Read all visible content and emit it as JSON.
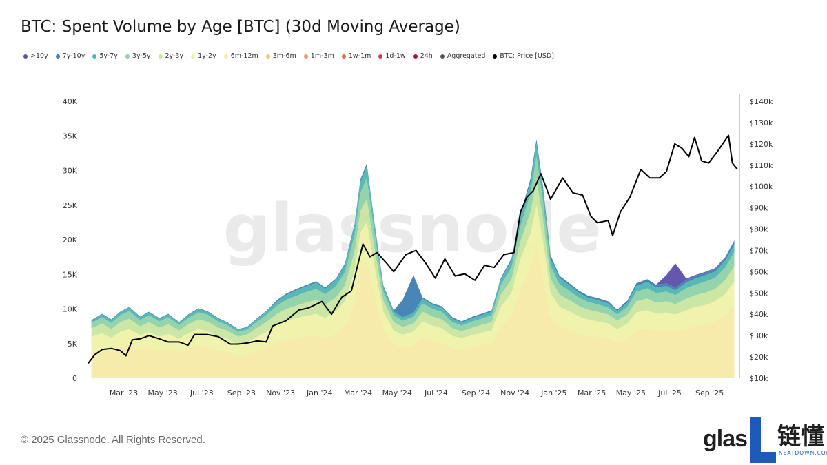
{
  "page": {
    "title": "BTC: Spent Volume by Age [BTC] (30d Moving Average)",
    "watermark": "glassnode",
    "copyright": "© 2025 Glassnode. All Rights Reserved.",
    "brand_left": "glas",
    "brand_right": "链懂",
    "brand_right_sub": "NEATDOWN.COM"
  },
  "legend": [
    {
      "label": ">10y",
      "color": "#5b4fa6",
      "active": true
    },
    {
      "label": "7y-10y",
      "color": "#3f7fb4",
      "active": true
    },
    {
      "label": "5y-7y",
      "color": "#4fb5b0",
      "active": true
    },
    {
      "label": "3y-5y",
      "color": "#8fd1a8",
      "active": true
    },
    {
      "label": "2y-3y",
      "color": "#c8e5a0",
      "active": true
    },
    {
      "label": "1y-2y",
      "color": "#eef2a6",
      "active": true
    },
    {
      "label": "6m-12m",
      "color": "#f7eaa8",
      "active": true
    },
    {
      "label": "3m-6m",
      "color": "#f8c67a",
      "active": false
    },
    {
      "label": "1m-3m",
      "color": "#f29a5e",
      "active": false
    },
    {
      "label": "1w-1m",
      "color": "#e06c4f",
      "active": false
    },
    {
      "label": "1d-1w",
      "color": "#cf3f4e",
      "active": false
    },
    {
      "label": "24h",
      "color": "#a1133c",
      "active": false
    },
    {
      "label": "Aggregated",
      "color": "#555555",
      "active": false
    },
    {
      "label": "BTC: Price [USD]",
      "color": "#000000",
      "active": true
    }
  ],
  "chart_data": {
    "type": "area",
    "title": "BTC: Spent Volume by Age [BTC] (30d Moving Average)",
    "x_tick_labels": [
      "Mar '23",
      "May '23",
      "Jul '23",
      "Sep '23",
      "Nov '23",
      "Jan '24",
      "Mar '24",
      "May '24",
      "Jul '24",
      "Sep '24",
      "Nov '24",
      "Jan '25",
      "Mar '25",
      "May '25",
      "Jul '25",
      "Sep '25"
    ],
    "y_left": {
      "ticks": [
        "0",
        "5K",
        "10K",
        "15K",
        "20K",
        "25K",
        "30K",
        "35K",
        "40K"
      ],
      "range": [
        0,
        40000
      ]
    },
    "y_right": {
      "ticks": [
        "$10k",
        "$20k",
        "$30k",
        "$40k",
        "$50k",
        "$60k",
        "$70k",
        "$80k",
        "$90k",
        "$100k",
        "$110k",
        "$120k",
        "$130k",
        "$140k"
      ],
      "range": [
        10000,
        140000
      ]
    },
    "x": [
      "2023-01-15",
      "2023-02-01",
      "2023-02-15",
      "2023-03-01",
      "2023-03-15",
      "2023-04-01",
      "2023-04-15",
      "2023-05-01",
      "2023-05-15",
      "2023-06-01",
      "2023-06-15",
      "2023-07-01",
      "2023-07-15",
      "2023-08-01",
      "2023-08-15",
      "2023-09-01",
      "2023-09-15",
      "2023-10-01",
      "2023-10-15",
      "2023-11-01",
      "2023-11-15",
      "2023-12-01",
      "2023-12-15",
      "2024-01-01",
      "2024-01-15",
      "2024-02-01",
      "2024-02-15",
      "2024-03-01",
      "2024-03-10",
      "2024-03-20",
      "2024-04-01",
      "2024-04-15",
      "2024-05-01",
      "2024-05-15",
      "2024-06-01",
      "2024-06-15",
      "2024-07-01",
      "2024-07-15",
      "2024-08-01",
      "2024-08-15",
      "2024-09-01",
      "2024-09-15",
      "2024-10-01",
      "2024-10-15",
      "2024-11-01",
      "2024-11-15",
      "2024-12-01",
      "2024-12-10",
      "2024-12-20",
      "2025-01-01",
      "2025-01-15",
      "2025-02-01",
      "2025-02-15",
      "2025-03-01",
      "2025-03-15",
      "2025-04-01",
      "2025-04-15",
      "2025-05-01",
      "2025-05-15",
      "2025-06-01",
      "2025-06-15",
      "2025-07-01",
      "2025-07-15",
      "2025-08-01",
      "2025-08-15",
      "2025-09-01",
      "2025-09-15",
      "2025-10-01",
      "2025-10-15"
    ],
    "series": [
      {
        "name": "6m-12m",
        "color": "#f7eaa8",
        "values": [
          4000,
          4200,
          3800,
          4500,
          4800,
          4200,
          4500,
          4000,
          4300,
          3800,
          4400,
          4800,
          4600,
          4000,
          3800,
          3200,
          3400,
          4000,
          4500,
          5200,
          5600,
          5800,
          6000,
          6200,
          5800,
          6500,
          7500,
          11000,
          16000,
          17000,
          12000,
          7000,
          5000,
          4500,
          4800,
          6000,
          5500,
          5200,
          4400,
          4200,
          4500,
          4800,
          5000,
          7500,
          9000,
          13000,
          16000,
          19000,
          15000,
          9000,
          7500,
          7000,
          6500,
          6200,
          6000,
          5800,
          5200,
          5800,
          7000,
          7200,
          6800,
          7000,
          6800,
          7200,
          7600,
          7800,
          8200,
          9000,
          10500
        ]
      },
      {
        "name": "1y-2y",
        "color": "#eef2a6",
        "values": [
          2000,
          2300,
          2000,
          2200,
          2300,
          2000,
          2200,
          2000,
          2100,
          1900,
          2100,
          2300,
          2200,
          2000,
          1900,
          1700,
          1800,
          2000,
          2200,
          2500,
          2700,
          2900,
          3000,
          3100,
          2900,
          3200,
          3600,
          4500,
          5000,
          5500,
          4200,
          2600,
          1900,
          1800,
          1900,
          2200,
          2100,
          2000,
          1700,
          1600,
          1700,
          1800,
          1900,
          2800,
          3300,
          4200,
          5000,
          6000,
          5000,
          3300,
          2800,
          2600,
          2400,
          2300,
          2200,
          2100,
          1900,
          2100,
          2500,
          2600,
          2500,
          2500,
          2400,
          2600,
          2700,
          2800,
          2900,
          3200,
          3500
        ]
      },
      {
        "name": "2y-3y",
        "color": "#c8e5a0",
        "values": [
          1200,
          1400,
          1300,
          1400,
          1500,
          1300,
          1400,
          1300,
          1400,
          1200,
          1300,
          1400,
          1400,
          1300,
          1200,
          1100,
          1100,
          1300,
          1400,
          1600,
          1700,
          1800,
          1900,
          2000,
          1900,
          2000,
          2300,
          2800,
          3100,
          3400,
          2600,
          1600,
          1200,
          1100,
          1200,
          1400,
          1300,
          1300,
          1100,
          1000,
          1100,
          1100,
          1200,
          1700,
          2000,
          2600,
          3100,
          3700,
          3100,
          2100,
          1800,
          1600,
          1500,
          1400,
          1400,
          1300,
          1200,
          1300,
          1600,
          1700,
          1600,
          1600,
          1500,
          1700,
          1700,
          1800,
          1800,
          2000,
          2200
        ]
      },
      {
        "name": "3y-5y",
        "color": "#8fd1a8",
        "values": [
          800,
          900,
          900,
          1000,
          1100,
          900,
          1000,
          900,
          1000,
          800,
          900,
          1000,
          1000,
          900,
          800,
          700,
          700,
          900,
          1000,
          1200,
          1300,
          1400,
          1500,
          1600,
          1500,
          1600,
          1900,
          2400,
          2700,
          3000,
          2200,
          1300,
          1000,
          900,
          1000,
          1200,
          1100,
          1100,
          900,
          800,
          900,
          900,
          1000,
          1400,
          1700,
          2200,
          2700,
          3300,
          2700,
          1800,
          1500,
          1300,
          1200,
          1100,
          1100,
          1000,
          900,
          1100,
          1400,
          1500,
          1400,
          1400,
          1300,
          1500,
          1500,
          1600,
          1600,
          1800,
          2000
        ]
      },
      {
        "name": "5y-7y",
        "color": "#4fb5b0",
        "values": [
          300,
          400,
          400,
          400,
          500,
          400,
          400,
          400,
          400,
          300,
          400,
          500,
          400,
          400,
          300,
          300,
          300,
          400,
          500,
          600,
          700,
          800,
          800,
          900,
          800,
          900,
          1000,
          1300,
          1500,
          1700,
          1200,
          700,
          500,
          500,
          500,
          700,
          600,
          600,
          500,
          400,
          500,
          500,
          500,
          800,
          1000,
          1300,
          1600,
          1900,
          1600,
          1000,
          900,
          800,
          700,
          600,
          600,
          600,
          500,
          600,
          800,
          900,
          800,
          800,
          700,
          800,
          900,
          900,
          900,
          1000,
          1100
        ]
      },
      {
        "name": "7y-10y",
        "color": "#3f7fb4",
        "values": [
          100,
          100,
          100,
          100,
          100,
          100,
          100,
          100,
          100,
          100,
          100,
          100,
          100,
          100,
          100,
          100,
          100,
          100,
          100,
          200,
          200,
          200,
          200,
          200,
          200,
          200,
          300,
          300,
          400,
          400,
          300,
          200,
          200,
          2500,
          5500,
          200,
          200,
          200,
          200,
          200,
          200,
          200,
          200,
          200,
          300,
          400,
          500,
          600,
          500,
          600,
          300,
          300,
          300,
          300,
          300,
          300,
          200,
          300,
          400,
          400,
          400,
          400,
          400,
          400,
          400,
          400,
          400,
          400,
          500
        ]
      },
      {
        "name": ">10y",
        "color": "#5b4fa6",
        "values": [
          0,
          0,
          0,
          0,
          0,
          0,
          0,
          0,
          0,
          0,
          0,
          0,
          0,
          0,
          0,
          0,
          0,
          0,
          0,
          0,
          0,
          0,
          0,
          0,
          0,
          0,
          0,
          0,
          0,
          0,
          0,
          0,
          0,
          0,
          0,
          0,
          0,
          0,
          0,
          0,
          0,
          0,
          0,
          0,
          0,
          0,
          0,
          0,
          0,
          0,
          0,
          0,
          0,
          0,
          0,
          0,
          0,
          0,
          0,
          0,
          0,
          1200,
          3500,
          200,
          100,
          100,
          100,
          100,
          100
        ]
      }
    ],
    "price": {
      "name": "BTC: Price [USD]",
      "color": "#000000",
      "x": [
        "2023-01-10",
        "2023-01-20",
        "2023-02-01",
        "2023-02-15",
        "2023-03-01",
        "2023-03-10",
        "2023-03-20",
        "2023-04-01",
        "2023-04-15",
        "2023-05-01",
        "2023-05-15",
        "2023-06-01",
        "2023-06-15",
        "2023-06-25",
        "2023-07-15",
        "2023-08-01",
        "2023-08-20",
        "2023-09-01",
        "2023-09-15",
        "2023-10-01",
        "2023-10-15",
        "2023-10-25",
        "2023-11-15",
        "2023-12-05",
        "2023-12-20",
        "2024-01-10",
        "2024-01-25",
        "2024-02-10",
        "2024-02-25",
        "2024-03-05",
        "2024-03-14",
        "2024-03-25",
        "2024-04-05",
        "2024-04-20",
        "2024-05-01",
        "2024-05-20",
        "2024-06-05",
        "2024-06-20",
        "2024-07-05",
        "2024-07-20",
        "2024-08-05",
        "2024-08-20",
        "2024-09-05",
        "2024-09-20",
        "2024-10-05",
        "2024-10-20",
        "2024-11-05",
        "2024-11-15",
        "2024-11-25",
        "2024-12-05",
        "2024-12-17",
        "2025-01-01",
        "2025-01-20",
        "2025-02-05",
        "2025-02-20",
        "2025-03-05",
        "2025-03-15",
        "2025-04-01",
        "2025-04-08",
        "2025-04-20",
        "2025-05-05",
        "2025-05-22",
        "2025-06-05",
        "2025-06-20",
        "2025-07-01",
        "2025-07-14",
        "2025-07-25",
        "2025-08-05",
        "2025-08-14",
        "2025-08-25",
        "2025-09-05",
        "2025-09-20",
        "2025-10-06",
        "2025-10-12",
        "2025-10-20"
      ],
      "values": [
        17000,
        21000,
        23500,
        24000,
        23000,
        20500,
        28000,
        28500,
        30000,
        28500,
        27000,
        27000,
        25500,
        30500,
        30500,
        29500,
        26000,
        26000,
        26500,
        27500,
        27000,
        34500,
        37000,
        42000,
        43000,
        46000,
        40000,
        48000,
        51000,
        62000,
        73000,
        67000,
        69000,
        64000,
        60000,
        68000,
        70000,
        64000,
        57000,
        66000,
        58000,
        59000,
        56000,
        63000,
        62000,
        68000,
        69000,
        88000,
        95000,
        98000,
        106000,
        94000,
        104000,
        97000,
        96000,
        86000,
        83000,
        84000,
        77000,
        88000,
        95000,
        108000,
        104000,
        104000,
        107000,
        120000,
        118000,
        114000,
        123000,
        112000,
        111000,
        117000,
        124000,
        111000,
        108000
      ]
    }
  }
}
